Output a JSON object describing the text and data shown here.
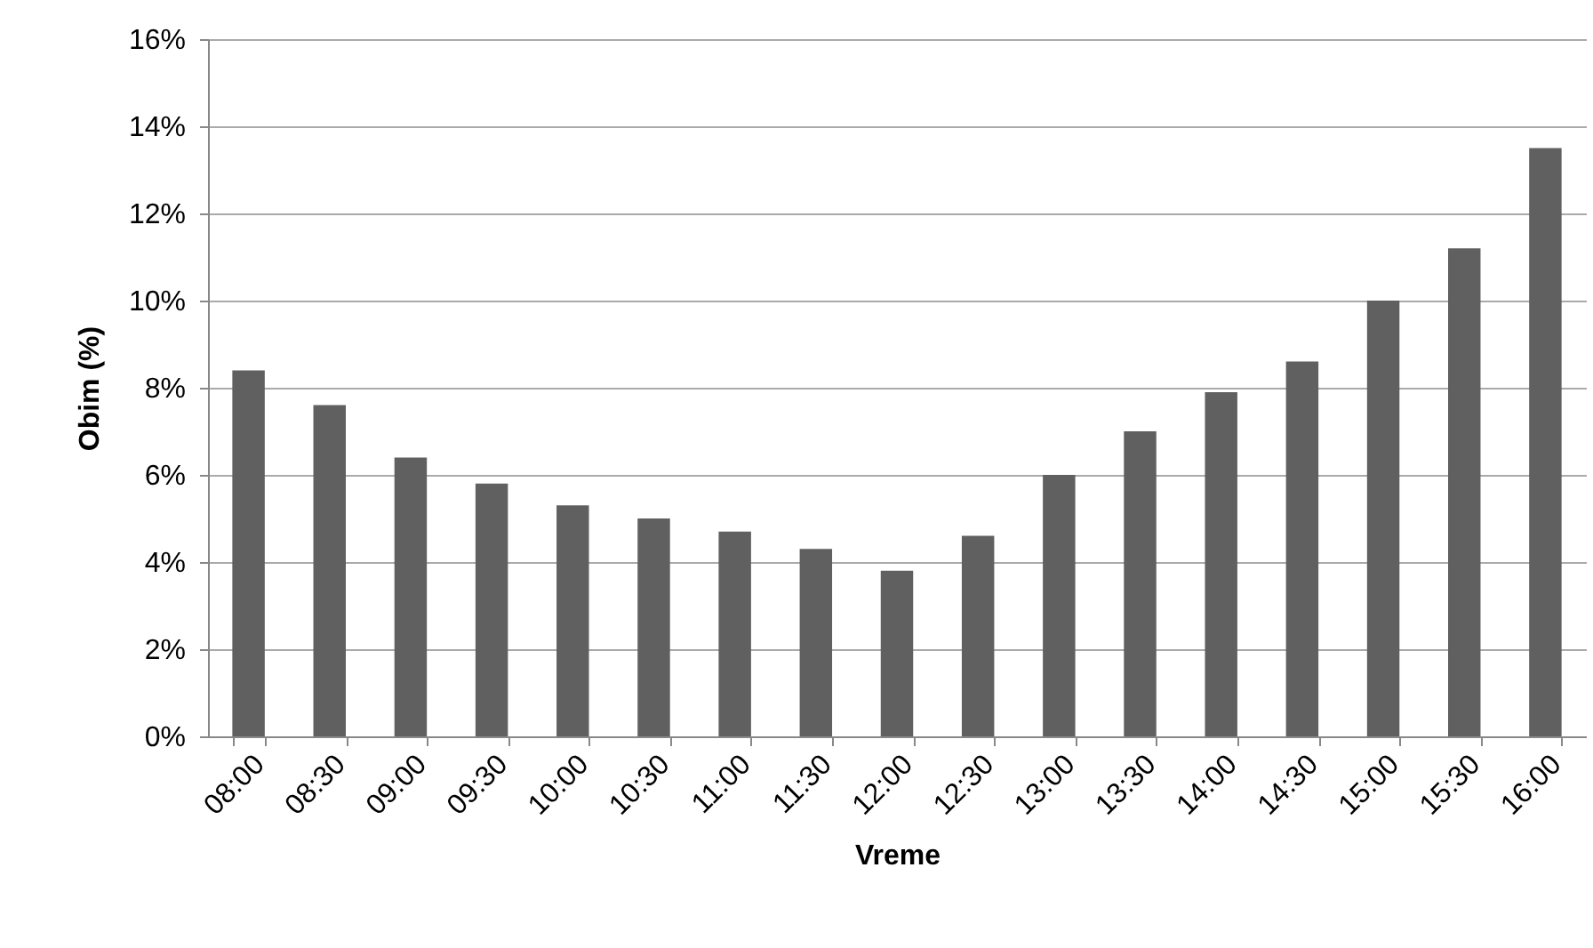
{
  "chart_data": {
    "type": "bar",
    "xlabel": "Vreme",
    "ylabel": "Obim (%)",
    "categories": [
      "08:00",
      "08:30",
      "09:00",
      "09:30",
      "10:00",
      "10:30",
      "11:00",
      "11:30",
      "12:00",
      "12:30",
      "13:00",
      "13:30",
      "14:00",
      "14:30",
      "15:00",
      "15:30",
      "16:00"
    ],
    "values": [
      8.4,
      7.6,
      6.4,
      5.8,
      5.3,
      5.0,
      4.7,
      4.3,
      3.8,
      4.6,
      6.0,
      7.0,
      7.9,
      8.6,
      10.0,
      11.2,
      13.5
    ],
    "color": "#606060",
    "ylim": [
      0,
      16
    ],
    "yticks": [
      {
        "value": 0,
        "label": "0%"
      },
      {
        "value": 2,
        "label": "2%"
      },
      {
        "value": 4,
        "label": "4%"
      },
      {
        "value": 6,
        "label": "6%"
      },
      {
        "value": 8,
        "label": "8%"
      },
      {
        "value": 10,
        "label": "10%"
      },
      {
        "value": 12,
        "label": "12%"
      },
      {
        "value": 14,
        "label": "14%"
      },
      {
        "value": 16,
        "label": "16%"
      }
    ],
    "grid": "y"
  }
}
